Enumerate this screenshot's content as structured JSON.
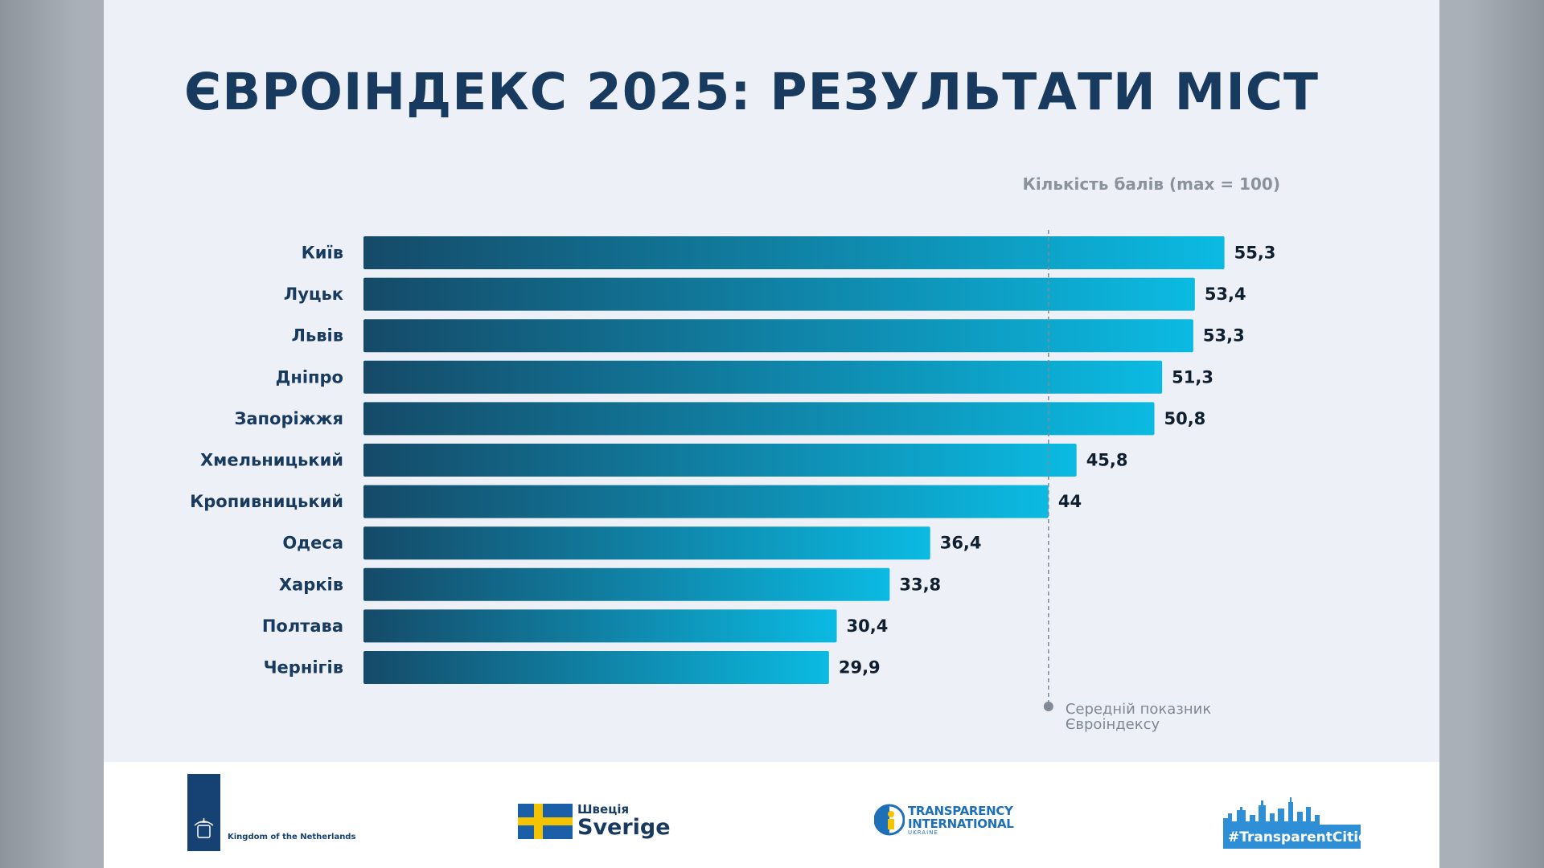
{
  "title": "ЄВРОІНДЕКС 2025: РЕЗУЛЬТАТИ МІСТ",
  "chart_data": {
    "type": "bar",
    "orientation": "horizontal",
    "title": "ЄВРОІНДЕКС 2025: РЕЗУЛЬТАТИ МІСТ",
    "unit_label": "Кількість балів (max = 100)",
    "categories": [
      "Київ",
      "Луцьк",
      "Львів",
      "Дніпро",
      "Запоріжжя",
      "Хмельницький",
      "Кропивницький",
      "Одеса",
      "Харків",
      "Полтава",
      "Чернігів"
    ],
    "values": [
      55.3,
      53.4,
      53.3,
      51.3,
      50.8,
      45.8,
      44,
      36.4,
      33.8,
      30.4,
      29.9
    ],
    "value_labels": [
      "55,3",
      "53,4",
      "53,3",
      "51,3",
      "50,8",
      "45,8",
      "44",
      "36,4",
      "33,8",
      "30,4",
      "29,9"
    ],
    "average_value": 44,
    "average_label": [
      "Середній показник",
      "Євроіндексу"
    ],
    "grid": false,
    "colors": {
      "bar_start": "#154a68",
      "bar_end": "#0bbae2",
      "average_line": "#7f8a96",
      "labels": "#173a5e"
    }
  },
  "footer": {
    "netherlands": "Kingdom of the Netherlands",
    "sweden_ua": "Швеція",
    "sweden": "Sverige",
    "ti_line1": "TRANSPARENCY",
    "ti_line2": "INTERNATIONAL",
    "ti_line3": "UKRAINE",
    "hashtag": "#TransparentCities"
  }
}
